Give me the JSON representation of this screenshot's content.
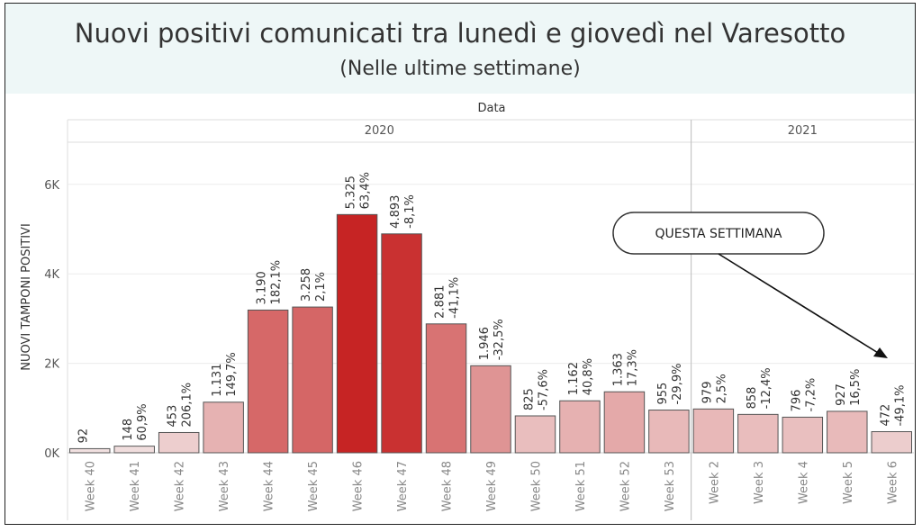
{
  "title": "Nuovi positivi comunicati tra lunedì e giovedì nel Varesotto",
  "subtitle": "(Nelle ultime settimane)",
  "header_label": "Data",
  "callout": "QUESTA SETTIMANA",
  "colors": {
    "header_bg": "#eef7f7",
    "bar_stroke": "#555555",
    "max_red": "#c62424",
    "min_tint": "#f2e6e6"
  },
  "chart_data": {
    "type": "bar",
    "title": "Nuovi positivi comunicati tra lunedì e giovedì nel Varesotto",
    "subtitle": "(Nelle ultime settimane)",
    "xlabel": "",
    "ylabel": "NUOVI TAMPONI POSITIVI",
    "ylim": [
      0,
      7000
    ],
    "yticks": [
      0,
      2000,
      4000,
      6000
    ],
    "ytick_labels": [
      "0K",
      "2K",
      "4K",
      "6K"
    ],
    "grid": true,
    "groups": [
      {
        "label": "2020",
        "categories": [
          "Week 40",
          "Week 41",
          "Week 42",
          "Week 43",
          "Week 44",
          "Week 45",
          "Week 46",
          "Week 47",
          "Week 48",
          "Week 49",
          "Week 50",
          "Week 51",
          "Week 52",
          "Week 53"
        ]
      },
      {
        "label": "2021",
        "categories": [
          "Week 2",
          "Week 3",
          "Week 4",
          "Week 5",
          "Week 6"
        ]
      }
    ],
    "categories": [
      "Week 40",
      "Week 41",
      "Week 42",
      "Week 43",
      "Week 44",
      "Week 45",
      "Week 46",
      "Week 47",
      "Week 48",
      "Week 49",
      "Week 50",
      "Week 51",
      "Week 52",
      "Week 53",
      "Week 2",
      "Week 3",
      "Week 4",
      "Week 5",
      "Week 6"
    ],
    "values": [
      92,
      148,
      453,
      1131,
      3190,
      3258,
      5325,
      4893,
      2881,
      1946,
      825,
      1162,
      1363,
      955,
      979,
      858,
      796,
      927,
      472
    ],
    "value_labels": [
      "92",
      "148",
      "453",
      "1.131",
      "3.190",
      "3.258",
      "5.325",
      "4.893",
      "2.881",
      "1.946",
      "825",
      "1.162",
      "1.363",
      "955",
      "979",
      "858",
      "796",
      "927",
      "472"
    ],
    "pct_labels": [
      "",
      "60,9%",
      "206,1%",
      "149,7%",
      "182,1%",
      "2,1%",
      "63,4%",
      "-8,1%",
      "-41,1%",
      "-32,5%",
      "-57,6%",
      "40,8%",
      "17,3%",
      "-29,9%",
      "2,5%",
      "-12,4%",
      "-7,2%",
      "16,5%",
      "-49,1%"
    ]
  }
}
